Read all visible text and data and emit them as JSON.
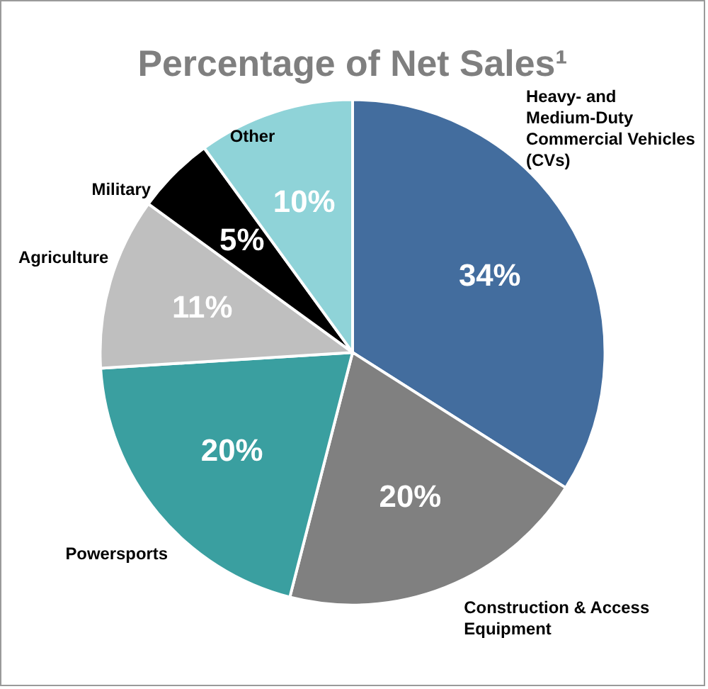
{
  "chart_data": {
    "type": "pie",
    "title": "Percentage of Net Sales¹",
    "categories": [
      "Heavy- and Medium-Duty Commercial Vehicles (CVs)",
      "Construction & Access Equipment",
      "Powersports",
      "Agriculture",
      "Military",
      "Other"
    ],
    "values": [
      34,
      20,
      20,
      11,
      5,
      10
    ],
    "value_labels": [
      "34%",
      "20%",
      "20%",
      "11%",
      "5%",
      "10%"
    ],
    "colors": [
      "#436d9e",
      "#808080",
      "#3a9fa0",
      "#bfbfbf",
      "#000000",
      "#8fd3d8"
    ],
    "legend": false
  }
}
